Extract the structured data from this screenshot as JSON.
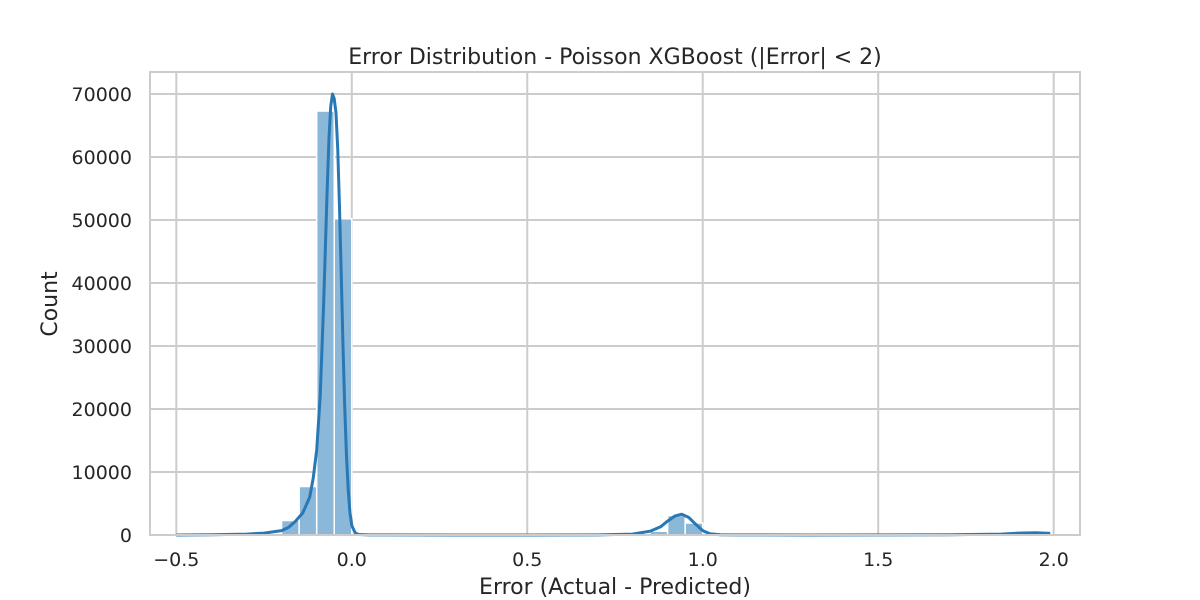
{
  "chart_data": {
    "type": "bar",
    "title": "Error Distribution - Poisson XGBoost (|Error| < 2)",
    "xlabel": "Error (Actual - Predicted)",
    "ylabel": "Count",
    "xlim": [
      -0.575,
      2.075
    ],
    "ylim": [
      0,
      73500
    ],
    "xticks": [
      -0.5,
      0.0,
      0.5,
      1.0,
      1.5,
      2.0
    ],
    "xtick_labels": [
      "−0.5",
      "0.0",
      "0.5",
      "1.0",
      "1.5",
      "2.0"
    ],
    "yticks": [
      0,
      10000,
      20000,
      30000,
      40000,
      50000,
      60000,
      70000
    ],
    "ytick_labels": [
      "0",
      "10000",
      "20000",
      "30000",
      "40000",
      "50000",
      "60000",
      "70000"
    ],
    "grid": true,
    "histogram": {
      "bin_width": 0.05,
      "bins": [
        {
          "start": -0.2,
          "end": -0.15,
          "count": 2300
        },
        {
          "start": -0.15,
          "end": -0.1,
          "count": 7700
        },
        {
          "start": -0.1,
          "end": -0.05,
          "count": 67300
        },
        {
          "start": -0.05,
          "end": 0.0,
          "count": 50200
        },
        {
          "start": 0.85,
          "end": 0.9,
          "count": 600
        },
        {
          "start": 0.9,
          "end": 0.95,
          "count": 3100
        },
        {
          "start": 0.95,
          "end": 1.0,
          "count": 1900
        }
      ],
      "color": "#8bb8d9",
      "edge_color": "#ffffff"
    },
    "kde": {
      "color": "#2878b5",
      "x": [
        -0.5,
        -0.4,
        -0.3,
        -0.25,
        -0.2,
        -0.18,
        -0.16,
        -0.14,
        -0.12,
        -0.11,
        -0.1,
        -0.09,
        -0.08,
        -0.07,
        -0.065,
        -0.06,
        -0.055,
        -0.05,
        -0.045,
        -0.04,
        -0.035,
        -0.03,
        -0.025,
        -0.02,
        -0.015,
        -0.01,
        -0.005,
        0.0,
        0.01,
        0.02,
        0.05,
        0.1,
        0.3,
        0.5,
        0.7,
        0.8,
        0.85,
        0.88,
        0.9,
        0.92,
        0.94,
        0.96,
        0.98,
        1.0,
        1.02,
        1.05,
        1.1,
        1.3,
        1.5,
        1.7,
        1.85,
        1.9,
        1.95,
        1.99
      ],
      "y": [
        0,
        50,
        150,
        300,
        700,
        1200,
        2200,
        3500,
        6000,
        9000,
        13500,
        22000,
        37000,
        55000,
        63000,
        68000,
        70000,
        69300,
        67000,
        61000,
        52000,
        41000,
        30000,
        20000,
        12500,
        7000,
        3500,
        1500,
        300,
        80,
        20,
        10,
        5,
        5,
        20,
        150,
        600,
        1300,
        2200,
        3000,
        3300,
        2800,
        1700,
        700,
        200,
        40,
        10,
        5,
        10,
        50,
        150,
        300,
        350,
        250
      ]
    }
  }
}
